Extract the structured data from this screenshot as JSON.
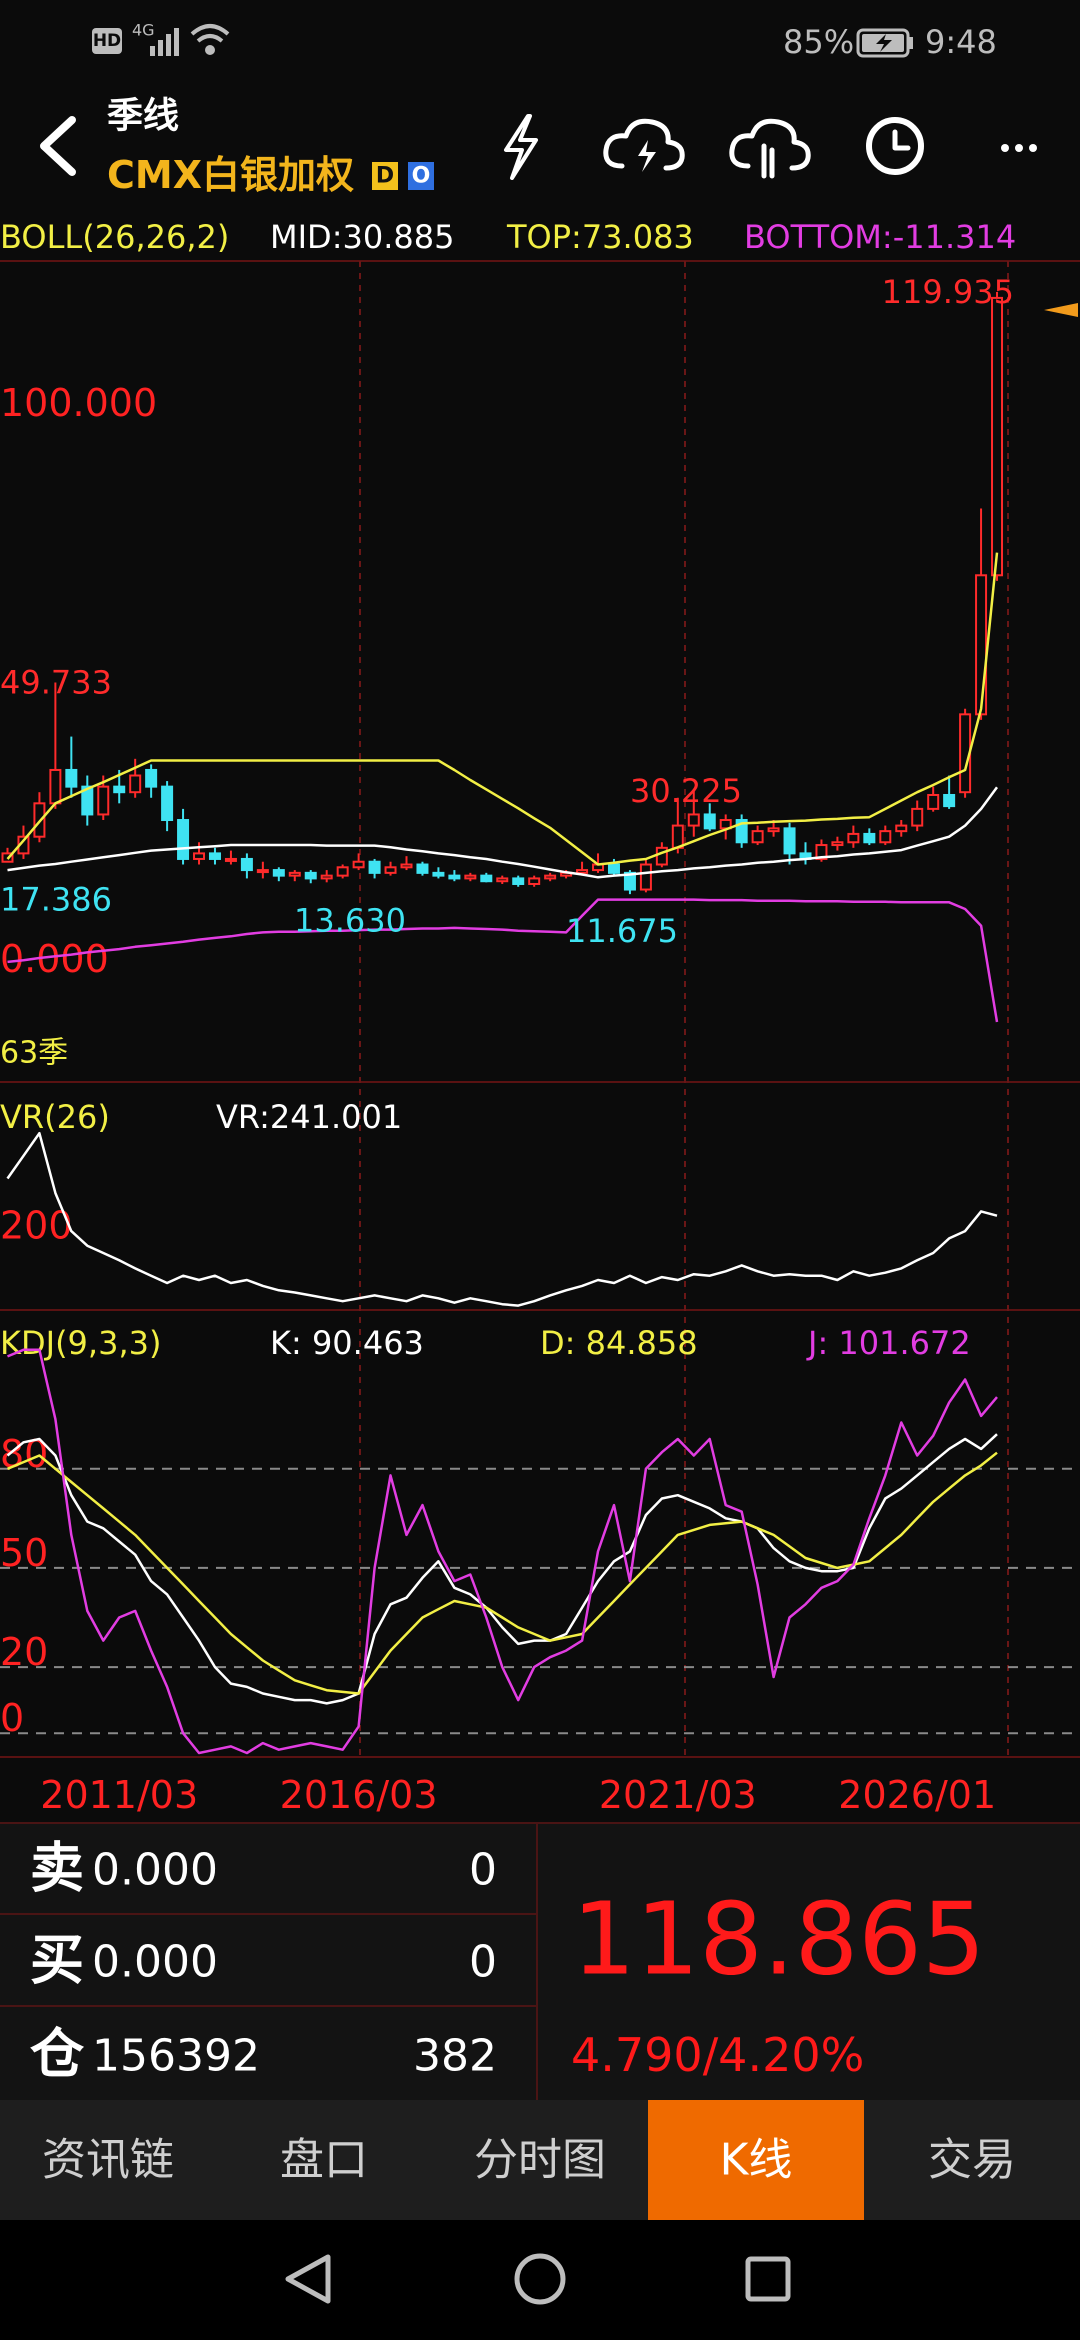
{
  "status_bar": {
    "hd": "HD",
    "network": "4G",
    "battery": "85%",
    "time": "9:48"
  },
  "header": {
    "period": "季线",
    "instrument": "CMX白银加权",
    "badges": [
      "D",
      "O"
    ]
  },
  "chart_data": [
    {
      "type": "candlestick",
      "title": "BOLL(26,26,2)",
      "count_label": "63季",
      "categories": [
        null,
        null,
        null,
        null,
        null,
        null,
        null,
        "2011/03",
        null,
        null,
        null,
        null,
        null,
        null,
        null,
        null,
        null,
        null,
        null,
        null,
        null,
        null,
        "2016/03",
        null,
        null,
        null,
        null,
        null,
        null,
        null,
        null,
        null,
        null,
        null,
        null,
        null,
        null,
        null,
        null,
        null,
        null,
        null,
        "2021/03",
        null,
        null,
        null,
        null,
        null,
        null,
        null,
        null,
        null,
        null,
        null,
        null,
        null,
        null,
        "2026/01",
        null,
        null,
        null,
        null,
        null
      ],
      "open": [
        17.5,
        19,
        22,
        28,
        34,
        31,
        26,
        31,
        30,
        34,
        31,
        25,
        18,
        19,
        18,
        18,
        16,
        16,
        15,
        15.5,
        14.5,
        15,
        16.5,
        17.5,
        15.5,
        16.5,
        17,
        15.5,
        15,
        14.5,
        15,
        14,
        14.5,
        13.5,
        14.5,
        15,
        15.5,
        16,
        17,
        15.5,
        12.5,
        17,
        20,
        24,
        26,
        23.5,
        25,
        21,
        23,
        23.5,
        19,
        18,
        20.5,
        21,
        22.5,
        21,
        23,
        24,
        27,
        29.5,
        30,
        44,
        69
      ],
      "high": [
        20,
        24,
        30,
        49.733,
        40,
        33,
        33,
        34,
        36,
        35,
        32,
        27,
        21,
        20,
        19.5,
        19,
        17.5,
        16.5,
        16,
        16,
        16,
        17,
        19,
        18,
        17.5,
        18.5,
        17.5,
        16.5,
        16,
        15.5,
        15.5,
        15,
        15,
        15,
        15.5,
        16,
        17.5,
        19,
        18,
        16,
        18,
        21,
        29,
        30.225,
        28,
        26,
        26,
        24,
        25,
        24.5,
        21,
        21.5,
        22,
        24,
        23.5,
        24,
        25,
        28.5,
        31,
        33,
        45,
        81,
        119.935
      ],
      "low": [
        17.386,
        18,
        21,
        27,
        29,
        24,
        25,
        28,
        29,
        29,
        23,
        17,
        17,
        17,
        17,
        14.5,
        14.5,
        14,
        14,
        13.63,
        13.8,
        14.5,
        16,
        14.5,
        15,
        16,
        15,
        14.5,
        14,
        14,
        13.8,
        13.5,
        13,
        13,
        14,
        14.5,
        15,
        15.5,
        15,
        11.675,
        12,
        16.5,
        19,
        22,
        23,
        21.5,
        20,
        20.5,
        22,
        17,
        17,
        17.5,
        19.5,
        20,
        20.5,
        20.5,
        22,
        23,
        26.5,
        27,
        29,
        43,
        68
      ],
      "close": [
        19,
        22,
        28,
        34,
        31,
        26,
        31,
        30,
        33,
        31,
        25,
        18,
        19,
        18,
        18,
        16,
        16,
        15,
        15.5,
        14.5,
        15,
        16.5,
        17.5,
        15.5,
        16.5,
        17,
        15.5,
        15,
        14.5,
        15,
        14,
        14.5,
        13.5,
        14.5,
        15,
        15.5,
        16,
        17,
        15.5,
        12.5,
        17,
        20,
        24,
        26,
        23.5,
        25,
        21,
        23,
        23.5,
        19,
        18,
        20.5,
        21,
        22.5,
        21,
        23,
        24,
        27,
        29.5,
        27.5,
        44,
        69,
        118.865
      ],
      "up_color": "#ff2b2b",
      "down_color": "#3fe3f2",
      "series": [
        {
          "label": "MID:30.885",
          "color": "#ffffff",
          "values": [
            16,
            16.4,
            16.8,
            17.1,
            17.5,
            17.9,
            18.3,
            18.7,
            19.1,
            19.5,
            19.7,
            19.9,
            20.1,
            20.3,
            20.5,
            20.5,
            20.5,
            20.5,
            20.5,
            20.5,
            20.4,
            20.4,
            20.4,
            20.4,
            20.1,
            19.7,
            19.4,
            19.0,
            18.7,
            18.3,
            18.0,
            17.5,
            17.1,
            16.6,
            16.1,
            15.6,
            15.2,
            14.7,
            15.0,
            15.2,
            15.5,
            15.8,
            16.0,
            16.3,
            16.5,
            16.8,
            17.0,
            17.3,
            17.5,
            17.8,
            18.0,
            18.3,
            18.5,
            18.8,
            19.0,
            19.3,
            19.6,
            20.4,
            21.2,
            22,
            24,
            27,
            30.885
          ]
        },
        {
          "label": "TOP:73.083",
          "color": "#f2ef45",
          "values": [
            18,
            21.3,
            24.7,
            28,
            29.3,
            30.6,
            31.8,
            33.1,
            34.4,
            35.7,
            35.7,
            35.7,
            35.7,
            35.7,
            35.7,
            35.7,
            35.7,
            35.7,
            35.7,
            35.7,
            35.7,
            35.7,
            35.7,
            35.7,
            35.7,
            35.7,
            35.7,
            35.7,
            34,
            32.2,
            30.5,
            28.8,
            27.1,
            25.3,
            23.6,
            21.4,
            19.2,
            17,
            17.3,
            17.7,
            18,
            19.1,
            20.1,
            21.2,
            22.3,
            23.3,
            24.4,
            24.5,
            24.7,
            24.8,
            24.9,
            25.1,
            25.2,
            25.4,
            25.5,
            27,
            28.5,
            30,
            31.3,
            32.7,
            34,
            45,
            73.083
          ]
        },
        {
          "label": "BOTTOM:-11.314",
          "color": "#e23de2",
          "values": [
            -0.5,
            -0.2,
            0.2,
            0.5,
            0.8,
            1.2,
            1.5,
            1.8,
            2.2,
            2.5,
            2.8,
            3.1,
            3.5,
            3.8,
            4.1,
            4.5,
            4.8,
            4.9,
            4.9,
            5.0,
            5.1,
            5.1,
            5.2,
            5.3,
            5.3,
            5.4,
            5.5,
            5.5,
            5.6,
            5.5,
            5.4,
            5.3,
            5.1,
            5,
            4.9,
            4.8,
            7.8,
            10.7,
            10.7,
            10.7,
            10.7,
            10.7,
            10.7,
            10.7,
            10.6,
            10.6,
            10.6,
            10.5,
            10.5,
            10.5,
            10.4,
            10.4,
            10.4,
            10.3,
            10.3,
            10.3,
            10.2,
            10.2,
            10.2,
            10.2,
            9,
            6,
            -11.314
          ]
        }
      ],
      "ylim": [
        -22.1,
        125.5
      ],
      "yticks": [
        {
          "value": 0,
          "label": "0.000"
        },
        {
          "value": 100,
          "label": "100.000"
        }
      ],
      "annotations": [
        {
          "label": "119.935",
          "value": 119.935,
          "kind": "high"
        },
        {
          "label": "49.733",
          "value": 49.733,
          "kind": "high"
        },
        {
          "label": "30.225",
          "value": 30.225,
          "kind": "high"
        },
        {
          "label": "17.386",
          "value": 17.386,
          "kind": "low"
        },
        {
          "label": "13.630",
          "value": 13.63,
          "kind": "low"
        },
        {
          "label": "11.675",
          "value": 11.675,
          "kind": "low"
        }
      ]
    },
    {
      "type": "line",
      "title": "VR(26)",
      "series": [
        {
          "label": "VR:241.001",
          "color": "#ffffff",
          "values": [
            292,
            323,
            354,
            272,
            220,
            200,
            190,
            180,
            169,
            159,
            149,
            159,
            153,
            159,
            149,
            153,
            145,
            139,
            136,
            132,
            128,
            124,
            128,
            132,
            128,
            124,
            132,
            128,
            122,
            128,
            124,
            120,
            118,
            124,
            132,
            139,
            145,
            153,
            149,
            159,
            149,
            157,
            153,
            161,
            159,
            165,
            173,
            165,
            159,
            161,
            159,
            159,
            153,
            165,
            159,
            163,
            169,
            180,
            190,
            210,
            220,
            247,
            241.001
          ]
        }
      ],
      "ylim": [
        112,
        409
      ],
      "yticks": [
        200
      ]
    },
    {
      "type": "line",
      "title": "KDJ(9,3,3)",
      "series": [
        {
          "label": "K: 90.463",
          "color": "#ffffff",
          "values": [
            84,
            88,
            89,
            84,
            72,
            64,
            62,
            58,
            54,
            46,
            42,
            35,
            28,
            20,
            15,
            14,
            12,
            11,
            10,
            10,
            9,
            10,
            12,
            30,
            39,
            41,
            47,
            52,
            44,
            42,
            38,
            32,
            27,
            28,
            28,
            30,
            38,
            46,
            52,
            55,
            66,
            71,
            72,
            70,
            68,
            65,
            64,
            62,
            56,
            52,
            50,
            49,
            49,
            50,
            62,
            71,
            74,
            78,
            82,
            86,
            89,
            86,
            90.463
          ]
        },
        {
          "label": "D: 84.858",
          "color": "#f2ef45",
          "values": [
            80,
            82,
            84,
            80,
            76,
            72,
            68,
            64,
            60,
            55,
            50,
            45,
            40,
            35,
            30,
            26,
            22,
            19,
            16,
            14.5,
            13,
            12.5,
            12,
            18.5,
            25,
            30,
            35,
            37.5,
            40,
            39,
            38,
            35,
            32,
            30,
            28,
            29,
            30,
            35,
            40,
            45,
            50,
            55,
            60,
            61.5,
            63,
            63.5,
            64,
            62,
            60,
            56.5,
            53,
            51.5,
            50,
            51,
            52,
            56,
            60,
            65,
            70,
            74,
            78,
            81,
            84.858
          ]
        },
        {
          "label": "J: 101.672",
          "color": "#e23de2",
          "values": [
            114,
            116,
            116,
            95,
            60,
            37,
            28,
            35,
            37,
            25,
            14,
            0,
            -6,
            -5,
            -4,
            -6,
            -3,
            -5,
            -4,
            -3,
            -4,
            -5,
            2,
            50,
            78,
            60,
            69,
            55,
            46,
            48,
            35,
            20,
            10,
            20,
            23,
            25,
            28,
            55,
            69,
            46,
            80,
            85,
            89,
            84,
            89,
            69,
            67,
            45,
            17,
            35,
            39,
            44,
            46,
            51,
            65,
            78,
            94,
            84,
            90,
            100,
            107,
            96,
            101.672
          ]
        }
      ],
      "ylim": [
        -7.2,
        125
      ],
      "yticks": [
        0,
        20,
        50,
        80
      ],
      "grid": true
    }
  ],
  "quote": {
    "rows": [
      {
        "label": "卖",
        "price": "0.000",
        "volume": 0
      },
      {
        "label": "买",
        "price": "0.000",
        "volume": 0
      },
      {
        "label": "仓",
        "price": 156392,
        "volume": 382
      }
    ],
    "last": 118.865,
    "change": "4.790/4.20%"
  },
  "tabs": [
    "资讯链",
    "盘口",
    "分时图",
    "K线",
    "交易"
  ],
  "active_tab": "K线"
}
